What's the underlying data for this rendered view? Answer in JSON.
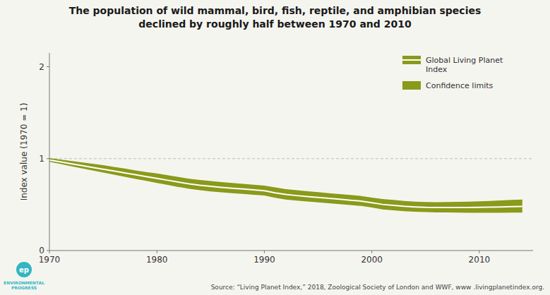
{
  "chart_data": {
    "type": "line",
    "title": "The population of wild mammal, bird, fish, reptile, and amphibian species\ndeclined by roughly half between 1970 and 2010",
    "ylabel": "Index value (1970 = 1)",
    "source": "Source: “Living Planet Index,” 2018, Zoological Society of London and WWF, www .livingplanetindex.org.",
    "annotations": [
      {
        "text": "ep",
        "color": "#33b5c2"
      },
      {
        "text": "ENVIRONMENTAL\nPROGRESS",
        "color": "#33b5c2"
      }
    ],
    "background_color": "#f5f5f0",
    "x": [
      1970,
      1971,
      1972,
      1973,
      1974,
      1975,
      1976,
      1977,
      1978,
      1979,
      1980,
      1981,
      1982,
      1983,
      1984,
      1985,
      1986,
      1987,
      1988,
      1989,
      1990,
      1991,
      1992,
      1993,
      1994,
      1995,
      1996,
      1997,
      1998,
      1999,
      2000,
      2001,
      2002,
      2003,
      2004,
      2005,
      2006,
      2007,
      2008,
      2009,
      2010,
      2011,
      2012,
      2013,
      2014
    ],
    "series": [
      {
        "name": "Global Living Planet\nIndex",
        "type": "line",
        "color": "#ffffff",
        "values": [
          0.985,
          0.965,
          0.945,
          0.925,
          0.905,
          0.885,
          0.865,
          0.845,
          0.825,
          0.805,
          0.785,
          0.765,
          0.745,
          0.725,
          0.71,
          0.698,
          0.688,
          0.678,
          0.67,
          0.66,
          0.65,
          0.628,
          0.61,
          0.598,
          0.588,
          0.578,
          0.568,
          0.558,
          0.548,
          0.538,
          0.52,
          0.502,
          0.492,
          0.482,
          0.475,
          0.47,
          0.468,
          0.468,
          0.468,
          0.468,
          0.47,
          0.472,
          0.475,
          0.478,
          0.48
        ]
      },
      {
        "name": "Confidence limits",
        "type": "area",
        "color": "#8a9a1a",
        "upper": [
          1.005,
          0.99,
          0.975,
          0.96,
          0.945,
          0.93,
          0.91,
          0.892,
          0.872,
          0.855,
          0.838,
          0.82,
          0.8,
          0.782,
          0.768,
          0.756,
          0.745,
          0.735,
          0.726,
          0.716,
          0.706,
          0.688,
          0.668,
          0.656,
          0.645,
          0.635,
          0.624,
          0.614,
          0.604,
          0.594,
          0.576,
          0.56,
          0.55,
          0.54,
          0.532,
          0.528,
          0.526,
          0.528,
          0.53,
          0.532,
          0.535,
          0.54,
          0.545,
          0.55,
          0.555
        ],
        "lower": [
          0.965,
          0.942,
          0.918,
          0.895,
          0.872,
          0.848,
          0.825,
          0.802,
          0.78,
          0.758,
          0.736,
          0.714,
          0.692,
          0.672,
          0.656,
          0.644,
          0.634,
          0.624,
          0.616,
          0.607,
          0.598,
          0.574,
          0.554,
          0.543,
          0.534,
          0.525,
          0.515,
          0.505,
          0.495,
          0.485,
          0.468,
          0.448,
          0.438,
          0.428,
          0.422,
          0.418,
          0.415,
          0.415,
          0.412,
          0.41,
          0.41,
          0.41,
          0.41,
          0.412,
          0.412
        ]
      }
    ],
    "hline": 1,
    "xlim": [
      1970,
      2015
    ],
    "ylim": [
      0,
      2.15
    ],
    "xticks": [
      1970,
      1980,
      1990,
      2000,
      2010
    ],
    "yticks": [
      0,
      1,
      2
    ],
    "grid": false,
    "legend": "upper right"
  }
}
